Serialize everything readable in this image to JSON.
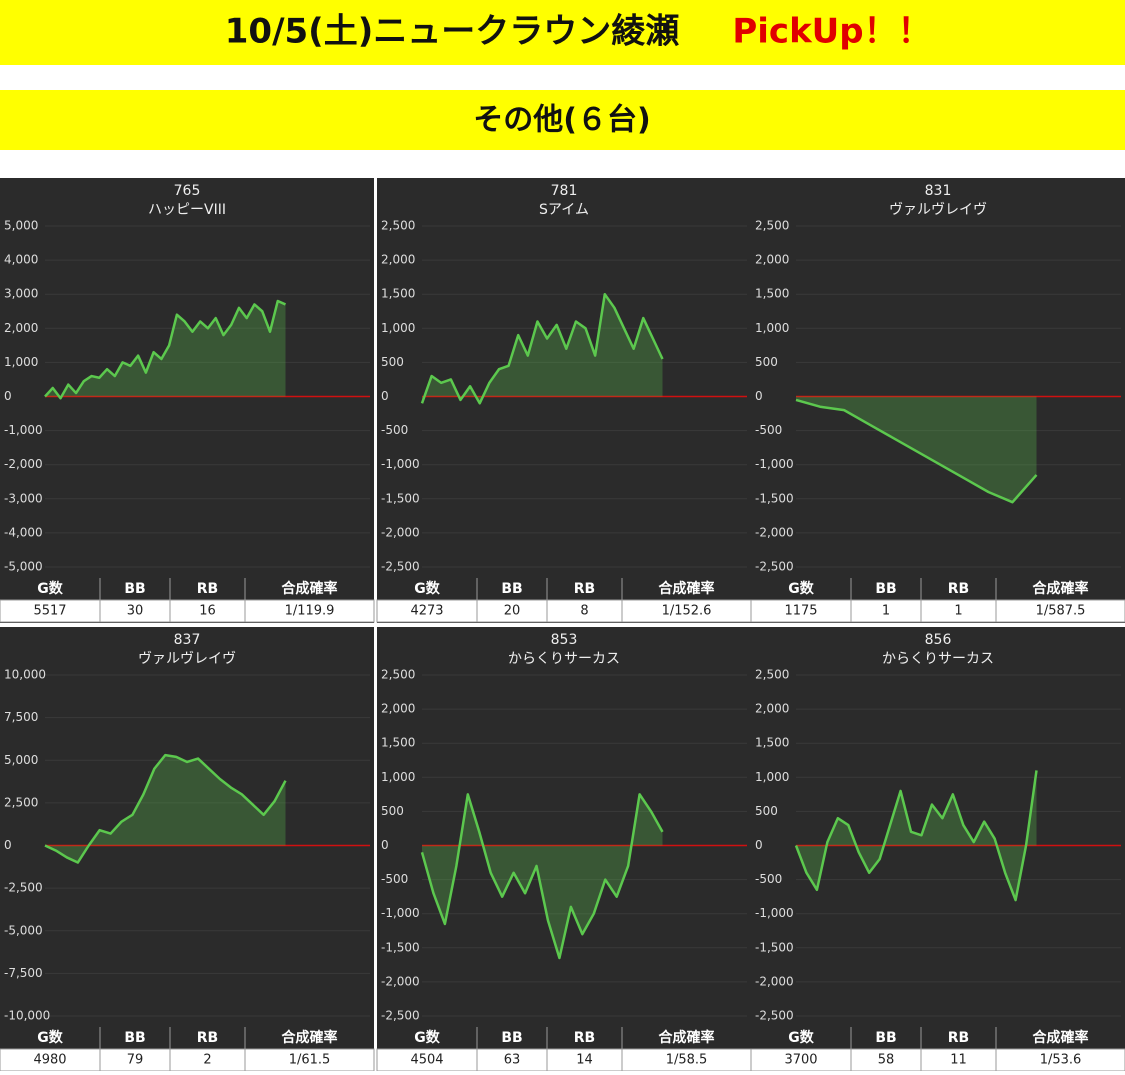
{
  "header": {
    "title": "10/5(土)ニュークラウン綾瀬",
    "pickup": "PickUp！！",
    "subtitle": "その他(６台)"
  },
  "chart_data": [
    {
      "type": "line",
      "title": "765",
      "subtitle": "ハッピーVIII",
      "ylim": [
        -5000,
        5000
      ],
      "yticks": [
        {
          "value": 5000,
          "label": "5,000"
        },
        {
          "value": 4000,
          "label": "4,000"
        },
        {
          "value": 3000,
          "label": "3,000"
        },
        {
          "value": 2000,
          "label": "2,000"
        },
        {
          "value": 1000,
          "label": "1,000"
        },
        0,
        {
          "value": -1000,
          "label": "-1,000"
        },
        {
          "value": -2000,
          "label": "-2,000"
        },
        {
          "value": -3000,
          "label": "-3,000"
        },
        {
          "value": -4000,
          "label": "-4,000"
        },
        {
          "value": -5000,
          "label": "-5,000"
        }
      ],
      "series": [
        {
          "color": "#5cc84e",
          "values": [
            0,
            250,
            -50,
            350,
            100,
            450,
            600,
            550,
            800,
            600,
            1000,
            900,
            1200,
            700,
            1300,
            1100,
            1500,
            2400,
            2200,
            1900,
            2200,
            2000,
            2300,
            1800,
            2100,
            2600,
            2300,
            2700,
            2500,
            1900,
            2800,
            2700
          ]
        }
      ],
      "table": {
        "columns": [
          "G数",
          "BB",
          "RB",
          "合成確率"
        ],
        "row": [
          5517,
          30,
          16,
          "1/119.9"
        ]
      }
    },
    {
      "type": "line",
      "title": "781",
      "subtitle": "Sアイム",
      "ylim": [
        -2500,
        2500
      ],
      "yticks": [
        {
          "value": 2500,
          "label": "2,500"
        },
        {
          "value": 2000,
          "label": "2,000"
        },
        {
          "value": 1500,
          "label": "1,500"
        },
        {
          "value": 1000,
          "label": "1,000"
        },
        500,
        0,
        -500,
        {
          "value": -1000,
          "label": "-1,000"
        },
        {
          "value": -1500,
          "label": "-1,500"
        },
        {
          "value": -2000,
          "label": "-2,000"
        },
        {
          "value": -2500,
          "label": "-2,500"
        }
      ],
      "series": [
        {
          "color": "#5cc84e",
          "values": [
            -100,
            300,
            200,
            250,
            -50,
            150,
            -100,
            200,
            400,
            450,
            900,
            600,
            1100,
            850,
            1050,
            700,
            1100,
            1000,
            600,
            1500,
            1300,
            1000,
            700,
            1150,
            850,
            550
          ]
        }
      ],
      "table": {
        "columns": [
          "G数",
          "BB",
          "RB",
          "合成確率"
        ],
        "row": [
          4273,
          20,
          8,
          "1/152.6"
        ]
      }
    },
    {
      "type": "line",
      "title": "831",
      "subtitle": "ヴァルヴレイヴ",
      "ylim": [
        -2500,
        2500
      ],
      "yticks": [
        {
          "value": 2500,
          "label": "2,500"
        },
        {
          "value": 2000,
          "label": "2,000"
        },
        {
          "value": 1500,
          "label": "1,500"
        },
        {
          "value": 1000,
          "label": "1,000"
        },
        500,
        0,
        -500,
        {
          "value": -1000,
          "label": "-1,000"
        },
        {
          "value": -1500,
          "label": "-1,500"
        },
        {
          "value": -2000,
          "label": "-2,000"
        },
        {
          "value": -2500,
          "label": "-2,500"
        }
      ],
      "series": [
        {
          "color": "#5cc84e",
          "values": [
            -50,
            -150,
            -200,
            -400,
            -600,
            -800,
            -1000,
            -1200,
            -1400,
            -1550,
            -1150
          ]
        }
      ],
      "table": {
        "columns": [
          "G数",
          "BB",
          "RB",
          "合成確率"
        ],
        "row": [
          1175,
          1,
          1,
          "1/587.5"
        ]
      }
    },
    {
      "type": "line",
      "title": "837",
      "subtitle": "ヴァルヴレイヴ",
      "ylim": [
        -10000,
        10000
      ],
      "yticks": [
        {
          "value": 10000,
          "label": "10,000"
        },
        {
          "value": 7500,
          "label": "7,500"
        },
        {
          "value": 5000,
          "label": "5,000"
        },
        {
          "value": 2500,
          "label": "2,500"
        },
        0,
        {
          "value": -2500,
          "label": "-2,500"
        },
        {
          "value": -5000,
          "label": "-5,000"
        },
        {
          "value": -7500,
          "label": "-7,500"
        },
        {
          "value": -10000,
          "label": "-10,000"
        }
      ],
      "series": [
        {
          "color": "#5cc84e",
          "values": [
            0,
            -300,
            -700,
            -1000,
            0,
            900,
            700,
            1400,
            1800,
            3000,
            4500,
            5300,
            5200,
            4900,
            5100,
            4500,
            3900,
            3400,
            3000,
            2400,
            1800,
            2600,
            3800
          ]
        }
      ],
      "table": {
        "columns": [
          "G数",
          "BB",
          "RB",
          "合成確率"
        ],
        "row": [
          4980,
          79,
          2,
          "1/61.5"
        ]
      }
    },
    {
      "type": "line",
      "title": "853",
      "subtitle": "からくりサーカス",
      "ylim": [
        -2500,
        2500
      ],
      "yticks": [
        {
          "value": 2500,
          "label": "2,500"
        },
        {
          "value": 2000,
          "label": "2,000"
        },
        {
          "value": 1500,
          "label": "1,500"
        },
        {
          "value": 1000,
          "label": "1,000"
        },
        500,
        0,
        -500,
        {
          "value": -1000,
          "label": "-1,000"
        },
        {
          "value": -1500,
          "label": "-1,500"
        },
        {
          "value": -2000,
          "label": "-2,000"
        },
        {
          "value": -2500,
          "label": "-2,500"
        }
      ],
      "series": [
        {
          "color": "#5cc84e",
          "values": [
            -100,
            -700,
            -1150,
            -300,
            750,
            200,
            -400,
            -750,
            -400,
            -700,
            -300,
            -1100,
            -1650,
            -900,
            -1300,
            -1000,
            -500,
            -750,
            -300,
            750,
            500,
            200
          ]
        }
      ],
      "table": {
        "columns": [
          "G数",
          "BB",
          "RB",
          "合成確率"
        ],
        "row": [
          4504,
          63,
          14,
          "1/58.5"
        ]
      }
    },
    {
      "type": "line",
      "title": "856",
      "subtitle": "からくりサーカス",
      "ylim": [
        -2500,
        2500
      ],
      "yticks": [
        {
          "value": 2500,
          "label": "2,500"
        },
        {
          "value": 2000,
          "label": "2,000"
        },
        {
          "value": 1500,
          "label": "1,500"
        },
        {
          "value": 1000,
          "label": "1,000"
        },
        500,
        0,
        -500,
        {
          "value": -1000,
          "label": "-1,000"
        },
        {
          "value": -1500,
          "label": "-1,500"
        },
        {
          "value": -2000,
          "label": "-2,000"
        },
        {
          "value": -2500,
          "label": "-2,500"
        }
      ],
      "series": [
        {
          "color": "#5cc84e",
          "values": [
            0,
            -400,
            -650,
            50,
            400,
            300,
            -100,
            -400,
            -200,
            300,
            800,
            200,
            150,
            600,
            400,
            750,
            300,
            50,
            350,
            100,
            -400,
            -800,
            0,
            1100
          ]
        }
      ],
      "table": {
        "columns": [
          "G数",
          "BB",
          "RB",
          "合成確率"
        ],
        "row": [
          3700,
          58,
          11,
          "1/53.6"
        ]
      }
    }
  ]
}
